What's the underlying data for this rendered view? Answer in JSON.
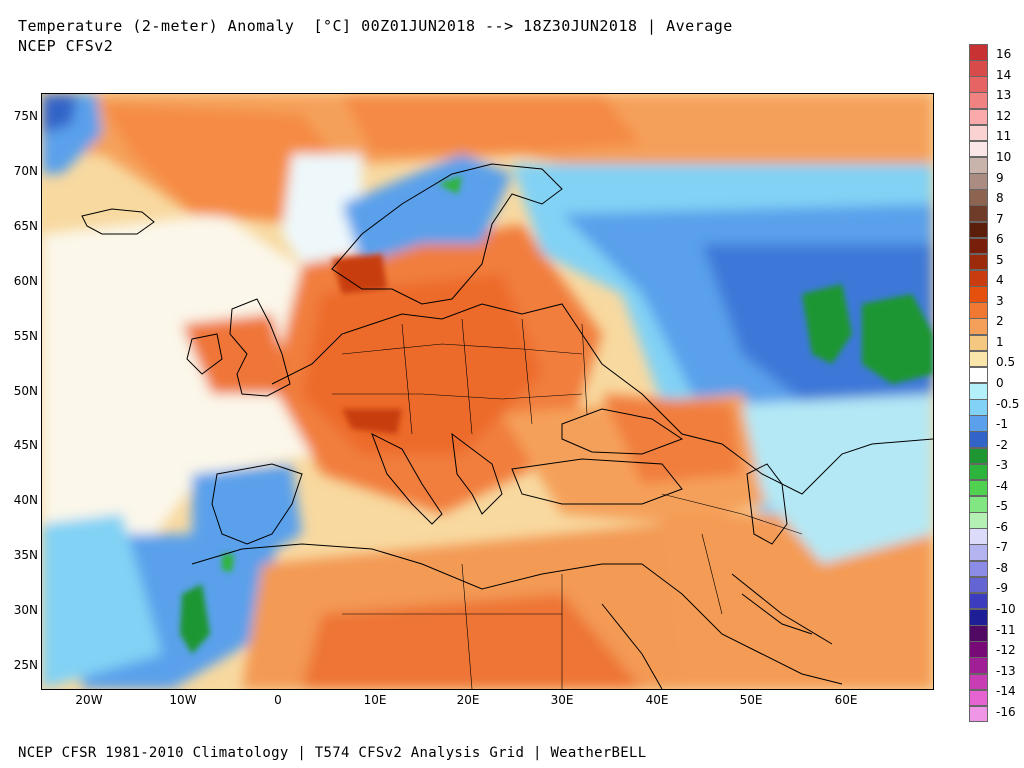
{
  "header": {
    "title": "Temperature (2-meter) Anomaly  [°C] 00Z01JUN2018 --> 18Z30JUN2018 | Average",
    "subtitle": "NCEP CFSv2"
  },
  "footer": {
    "text": "NCEP CFSR 1981-2010 Climatology | T574 CFSv2 Analysis Grid | WeatherBELL"
  },
  "map": {
    "region": "Europe, North Africa, Middle East",
    "lat_labels": [
      "75N",
      "70N",
      "65N",
      "60N",
      "55N",
      "50N",
      "45N",
      "40N",
      "35N",
      "30N",
      "25N"
    ],
    "lon_labels": [
      "20W",
      "10W",
      "0",
      "10E",
      "20E",
      "30E",
      "40E",
      "50E",
      "60E"
    ]
  },
  "colorbar": {
    "labels": [
      "16",
      "14",
      "13",
      "12",
      "11",
      "10",
      "9",
      "8",
      "7",
      "6",
      "5",
      "4",
      "3",
      "2",
      "1",
      "0.5",
      "0",
      "-0.5",
      "-1",
      "-2",
      "-3",
      "-4",
      "-5",
      "-6",
      "-7",
      "-8",
      "-9",
      "-10",
      "-11",
      "-12",
      "-13",
      "-14",
      "-16"
    ],
    "colors": [
      "#c83232",
      "#d74b4b",
      "#e66464",
      "#f08282",
      "#faaaaa",
      "#fad2d2",
      "#fae6e6",
      "#c8b4aa",
      "#aa8c82",
      "#8c6450",
      "#6e3c28",
      "#5a1e0a",
      "#781e0a",
      "#9b2b0a",
      "#c83c0f",
      "#e6500f",
      "#f07833",
      "#f5a05a",
      "#f5c882",
      "#fae6aa",
      "#ffffff",
      "#b4f0fa",
      "#82d2f5",
      "#5aa0eb",
      "#3264c8",
      "#1e9632",
      "#2db43c",
      "#50d250",
      "#82e682",
      "#b4f0b4",
      "#dcdcfa",
      "#b4b4f0",
      "#8c8ce6",
      "#6464d2",
      "#3c3cbe",
      "#1e1e96",
      "#500a64",
      "#780a78",
      "#a01e96",
      "#c83cb4",
      "#e664d2",
      "#f096e6"
    ]
  }
}
